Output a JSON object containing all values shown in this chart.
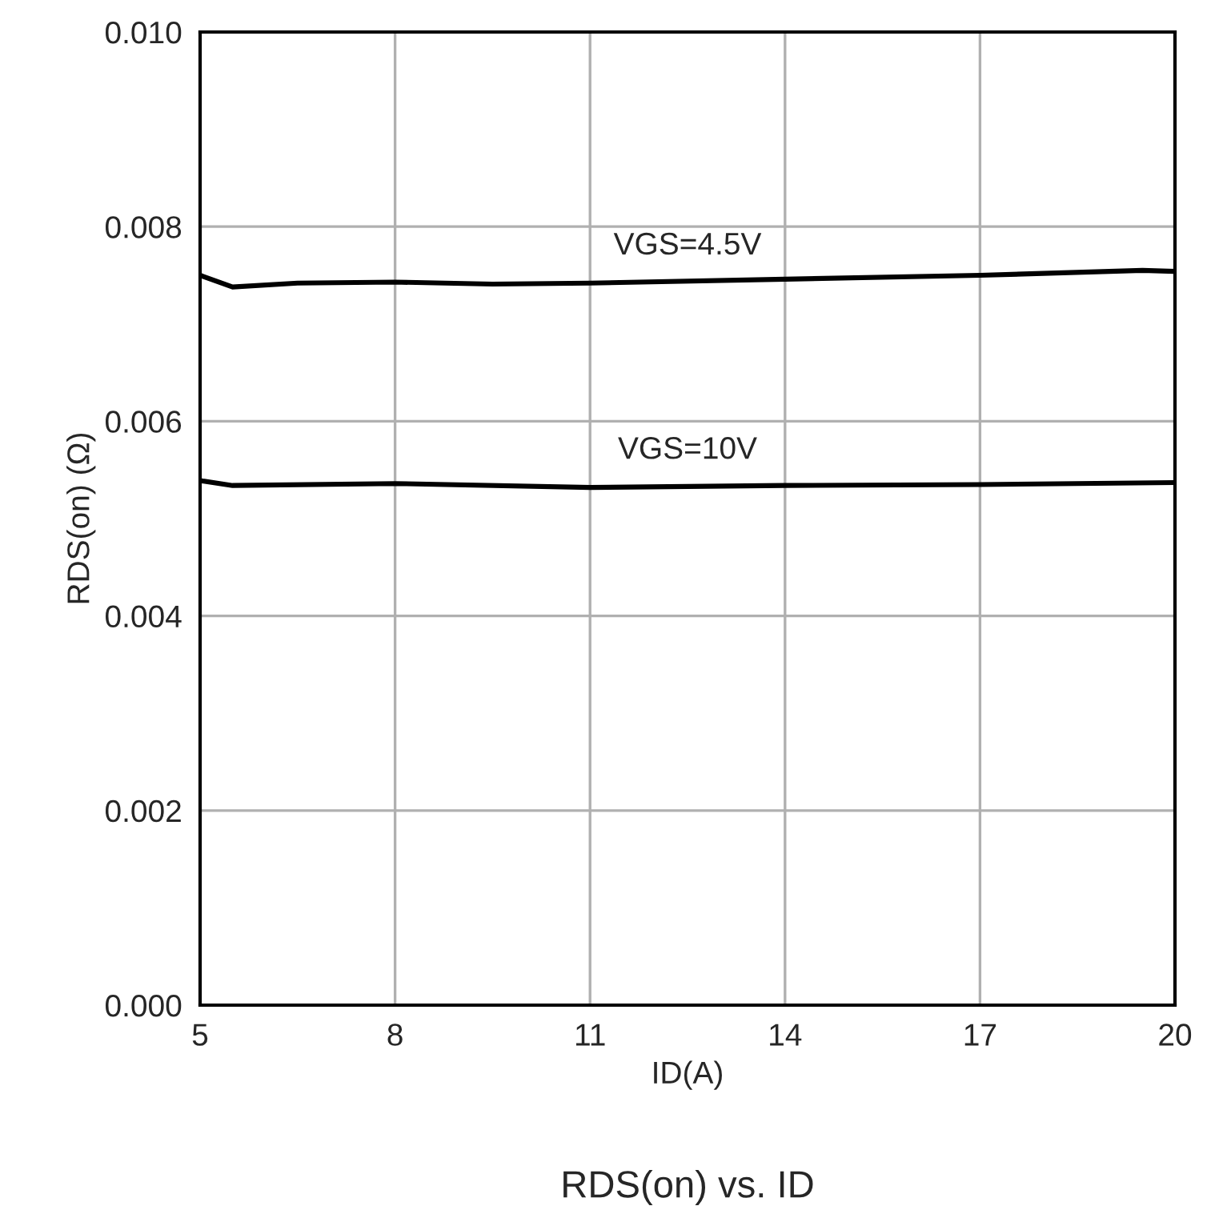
{
  "chart_data": {
    "type": "line",
    "title": "RDS(on) vs. ID",
    "xlabel": "ID(A)",
    "ylabel": "RDS(on) (Ω)",
    "xlim": [
      5,
      20
    ],
    "xticks": [
      5,
      8,
      11,
      14,
      17,
      20
    ],
    "ylim": [
      0,
      0.01
    ],
    "yticks": [
      {
        "value": 0,
        "label": "0.000"
      },
      {
        "value": 0.002,
        "label": "0.002"
      },
      {
        "value": 0.004,
        "label": "0.004"
      },
      {
        "value": 0.006,
        "label": "0.006"
      },
      {
        "value": 0.008,
        "label": "0.008"
      },
      {
        "value": 0.01,
        "label": "0.010"
      }
    ],
    "grid": true,
    "marker": "none",
    "line_style": "solid",
    "series": [
      {
        "name": "VGS=4.5V",
        "color": "#000000",
        "x": [
          5,
          5.5,
          6.5,
          8,
          9.5,
          11,
          14,
          17,
          19.5,
          20
        ],
        "values": [
          0.0075,
          0.00738,
          0.00742,
          0.00743,
          0.00741,
          0.00742,
          0.00746,
          0.0075,
          0.00755,
          0.00754
        ]
      },
      {
        "name": "VGS=10V",
        "color": "#000000",
        "x": [
          5,
          5.5,
          8,
          11,
          14,
          17,
          20
        ],
        "values": [
          0.00539,
          0.00534,
          0.00536,
          0.00532,
          0.00534,
          0.00535,
          0.00537
        ]
      }
    ]
  }
}
